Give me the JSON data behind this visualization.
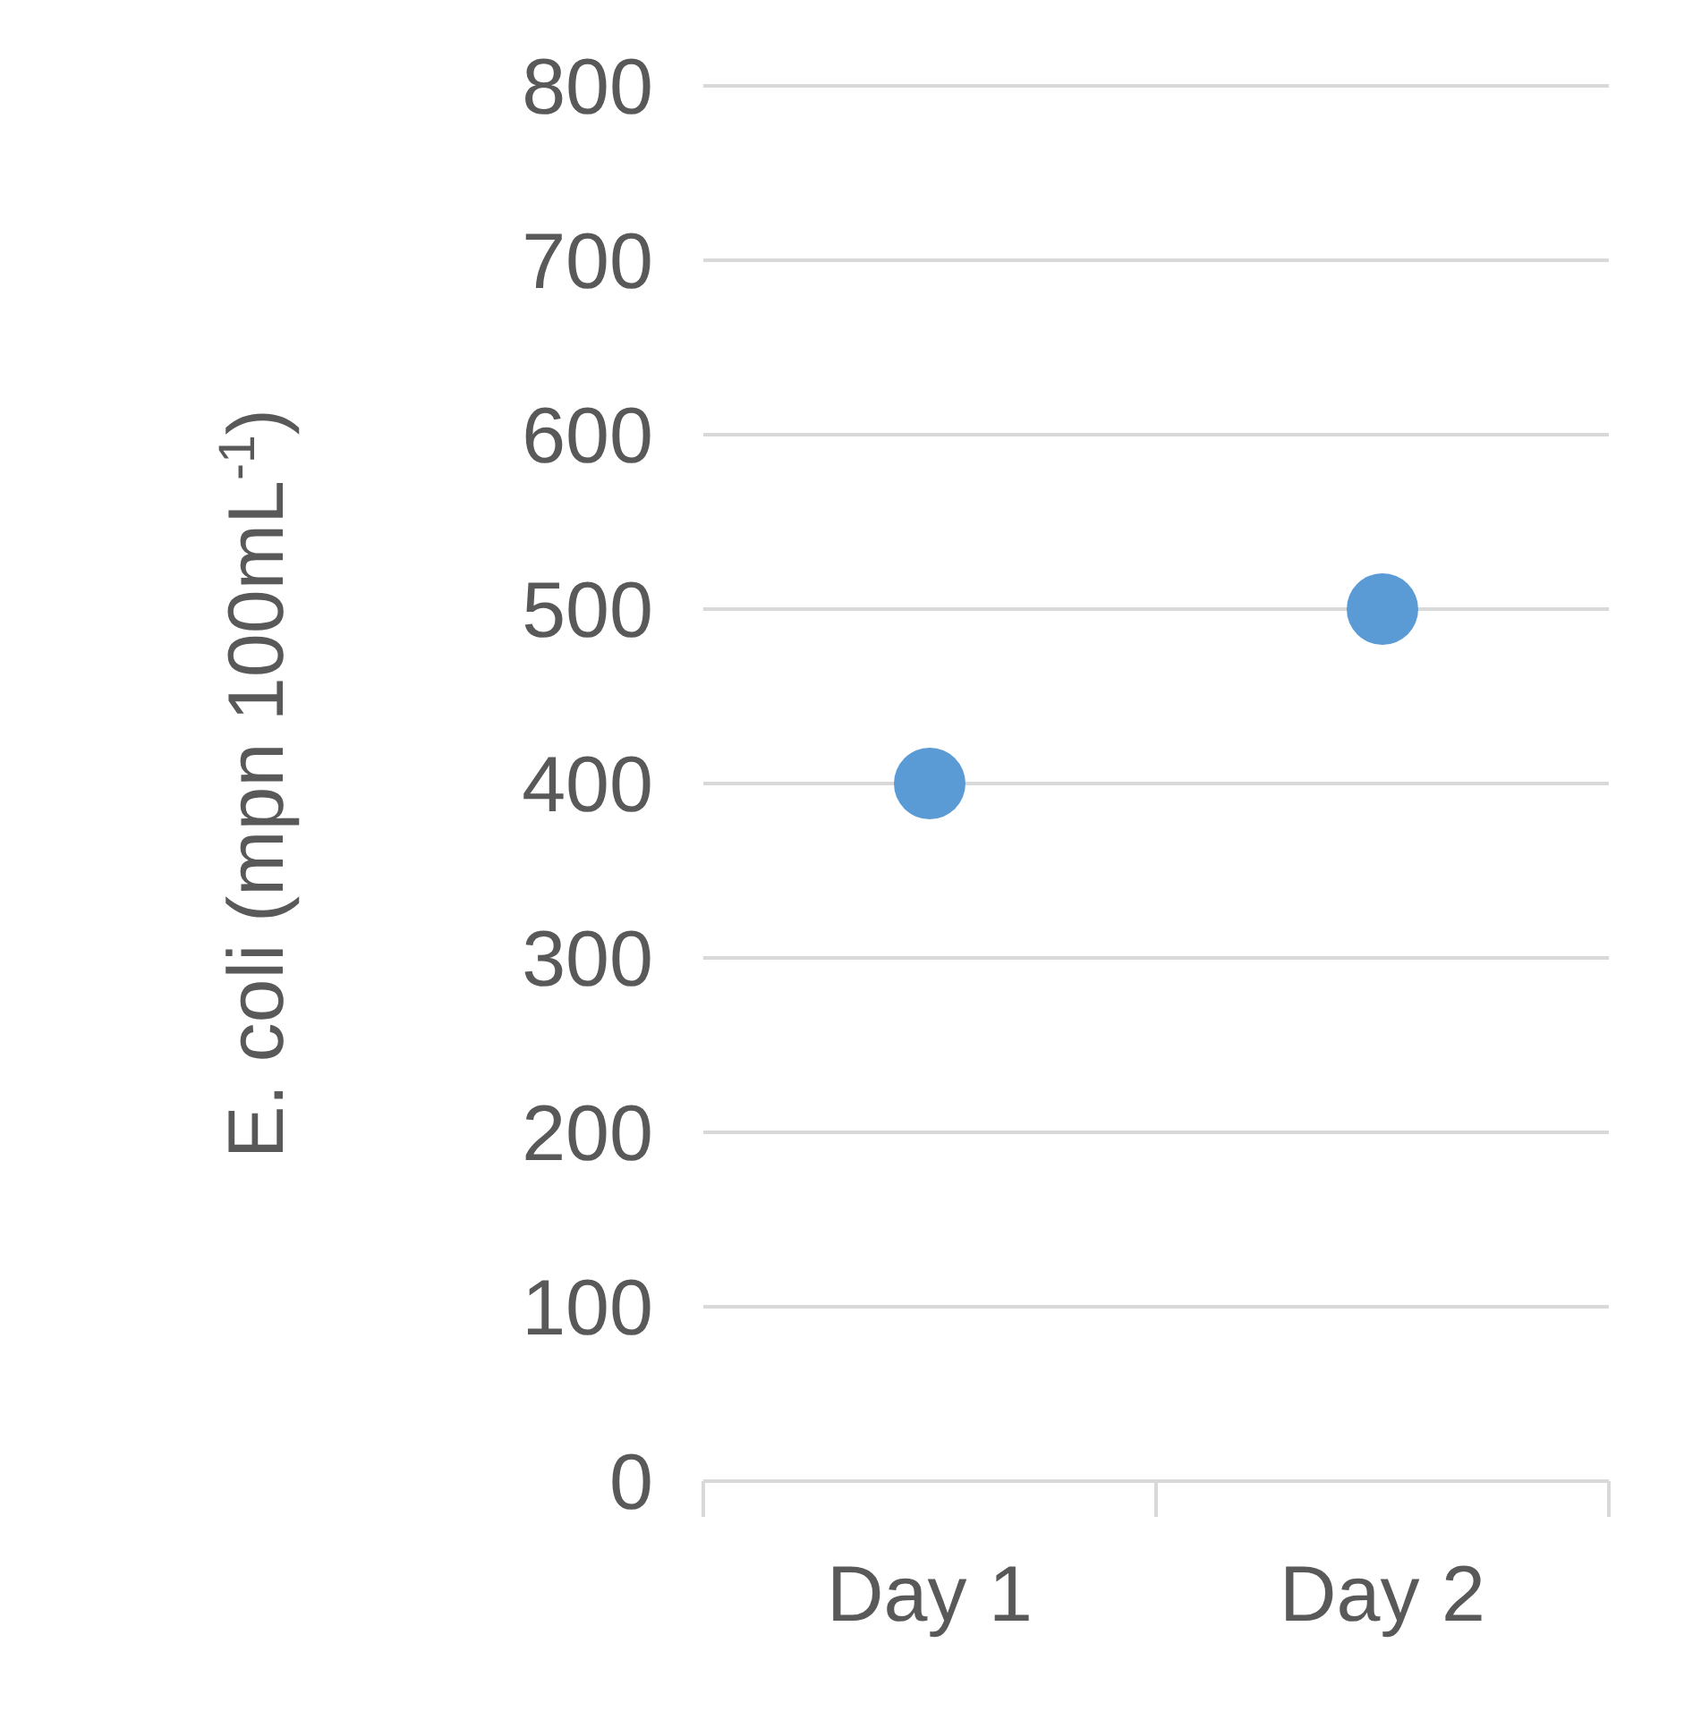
{
  "chart_data": {
    "type": "scatter",
    "ylabel": "E. coli (mpn 100mL$^{-1}$)",
    "categories": [
      "Day 1",
      "Day 2"
    ],
    "series": [
      {
        "color": "#5b9bd5",
        "values": [
          400,
          500
        ]
      }
    ],
    "ylim": [
      0,
      800
    ],
    "yticks": [
      0,
      100,
      200,
      300,
      400,
      500,
      600,
      700,
      800
    ],
    "grid": "y",
    "marker": "circle",
    "legend": false
  }
}
